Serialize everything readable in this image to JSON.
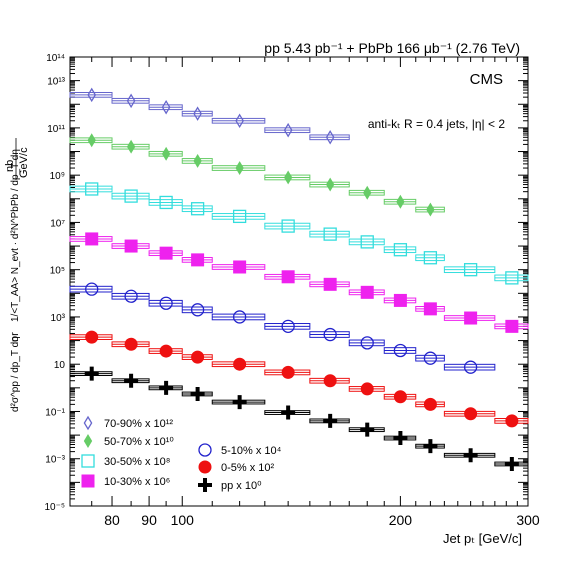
{
  "chart_data": {
    "type": "scatter",
    "title": "pp 5.43 pb⁻¹ + PbPb 166 μb⁻¹ (2.76 TeV)",
    "cms_label": "CMS",
    "jet_label": "anti-kₜ R = 0.4 jets, |η| < 2",
    "xlabel": "Jet pₜ [GeV/c]",
    "ylabel_parts": {
      "nb_unit_top": "nb",
      "nb_unit_bottom": "GeV/c",
      "pbpb_term": "1/<T_AA> N_evt · d²N^PbPb / dp_T dη",
      "or_word": "or",
      "pp_term": "d²σ^pp / dp_T dη"
    },
    "xscale": "log",
    "yscale": "log",
    "xlim": [
      70,
      300
    ],
    "ylim": [
      1e-05,
      100000000000000.0
    ],
    "x_tick_labels": [
      {
        "value": 80,
        "label": "80"
      },
      {
        "value": 90,
        "label": "90"
      },
      {
        "value": 100,
        "label": "100"
      },
      {
        "value": 200,
        "label": "200"
      },
      {
        "value": 300,
        "label": "300"
      }
    ],
    "y_tick_labels": [
      {
        "exp": -5,
        "label": "10⁻⁵"
      },
      {
        "exp": -3,
        "label": "10⁻³"
      },
      {
        "exp": -1,
        "label": "10⁻¹"
      },
      {
        "exp": 1,
        "label": "10"
      },
      {
        "exp": 3,
        "label": "10³"
      },
      {
        "exp": 5,
        "label": "10⁵"
      },
      {
        "exp": 7,
        "label": "10⁷"
      },
      {
        "exp": 9,
        "label": "10⁹"
      },
      {
        "exp": 11,
        "label": "10¹¹"
      },
      {
        "exp": 13,
        "label": "10¹³"
      },
      {
        "exp": 14,
        "label": "10¹⁴"
      }
    ],
    "grid": false,
    "legend_placement": "bottom-left",
    "series": [
      {
        "name": "70-90% x 10¹²",
        "marker": "diamond-open",
        "color": "#6666cc",
        "x": [
          75,
          85,
          95,
          105,
          120,
          140,
          160
        ],
        "xlo": [
          70,
          80,
          90,
          100,
          110,
          130,
          150
        ],
        "xhi": [
          80,
          90,
          100,
          110,
          130,
          150,
          170
        ],
        "y": [
          2500000000000.0,
          1400000000000.0,
          750000000000.0,
          400000000000.0,
          200000000000.0,
          80000000000.0,
          40000000000.0
        ]
      },
      {
        "name": "50-70% x 10¹⁰",
        "marker": "diamond-filled",
        "color": "#66cc66",
        "x": [
          75,
          85,
          95,
          105,
          120,
          140,
          160,
          180,
          200,
          220
        ],
        "xlo": [
          70,
          80,
          90,
          100,
          110,
          130,
          150,
          170,
          190,
          210
        ],
        "xhi": [
          80,
          90,
          100,
          110,
          130,
          150,
          170,
          190,
          210,
          230
        ],
        "y": [
          30000000000.0,
          16000000000.0,
          8000000000.0,
          4000000000.0,
          2000000000.0,
          800000000.0,
          400000000.0,
          180000000.0,
          75000000.0,
          35000000.0
        ]
      },
      {
        "name": "30-50% x 10⁸",
        "marker": "square-open",
        "color": "#33dddd",
        "x": [
          75,
          85,
          95,
          105,
          120,
          140,
          160,
          180,
          200,
          220,
          250,
          285
        ],
        "xlo": [
          70,
          80,
          90,
          100,
          110,
          130,
          150,
          170,
          190,
          210,
          230,
          270
        ],
        "xhi": [
          80,
          90,
          100,
          110,
          130,
          150,
          170,
          190,
          210,
          230,
          270,
          300
        ],
        "y": [
          260000000.0,
          130000000.0,
          70000000.0,
          38000000.0,
          18000000.0,
          7000000.0,
          3200000.0,
          1500000.0,
          700000.0,
          320000.0,
          100000.0,
          45000.0
        ]
      },
      {
        "name": "10-30% x 10⁶",
        "marker": "square-filled",
        "color": "#ee22ee",
        "x": [
          75,
          85,
          95,
          105,
          120,
          140,
          160,
          180,
          200,
          220,
          250,
          285
        ],
        "xlo": [
          70,
          80,
          90,
          100,
          110,
          130,
          150,
          170,
          190,
          210,
          230,
          270
        ],
        "xhi": [
          80,
          90,
          100,
          110,
          130,
          150,
          170,
          190,
          210,
          230,
          270,
          300
        ],
        "y": [
          2000000.0,
          1000000.0,
          500000.0,
          260000.0,
          130000.0,
          50000.0,
          24000.0,
          11000.0,
          5000.0,
          2200.0,
          900.0,
          400.0
        ]
      },
      {
        "name": "5-10% x 10⁴",
        "marker": "circle-open",
        "color": "#2222cc",
        "x": [
          75,
          85,
          95,
          105,
          120,
          140,
          160,
          180,
          200,
          220,
          250
        ],
        "xlo": [
          70,
          80,
          90,
          100,
          110,
          130,
          150,
          170,
          190,
          210,
          230
        ],
        "xhi": [
          80,
          90,
          100,
          110,
          130,
          150,
          170,
          190,
          210,
          230,
          270
        ],
        "y": [
          15000.0,
          7500.0,
          3800.0,
          2000.0,
          1000.0,
          400.0,
          180.0,
          80,
          38,
          18,
          7.5
        ]
      },
      {
        "name": "0-5% x 10²",
        "marker": "circle-filled",
        "color": "#ee1111",
        "x": [
          75,
          85,
          95,
          105,
          120,
          140,
          160,
          180,
          200,
          220,
          250,
          285
        ],
        "xlo": [
          70,
          80,
          90,
          100,
          110,
          130,
          150,
          170,
          190,
          210,
          230,
          270
        ],
        "xhi": [
          80,
          90,
          100,
          110,
          130,
          150,
          170,
          190,
          210,
          230,
          270,
          300
        ],
        "y": [
          140,
          70,
          36,
          20,
          10,
          4.5,
          2,
          0.9,
          0.42,
          0.2,
          0.08,
          0.04
        ]
      },
      {
        "name": "pp x 10⁰",
        "marker": "cross",
        "color": "#000000",
        "x": [
          75,
          85,
          95,
          105,
          120,
          140,
          160,
          180,
          200,
          220,
          250,
          285
        ],
        "xlo": [
          70,
          80,
          90,
          100,
          110,
          130,
          150,
          170,
          190,
          210,
          230,
          270
        ],
        "xhi": [
          80,
          90,
          100,
          110,
          130,
          150,
          170,
          190,
          210,
          230,
          270,
          300
        ],
        "y": [
          4,
          2,
          1,
          0.55,
          0.25,
          0.09,
          0.04,
          0.017,
          0.0075,
          0.0034,
          0.0014,
          0.0006
        ]
      }
    ]
  }
}
